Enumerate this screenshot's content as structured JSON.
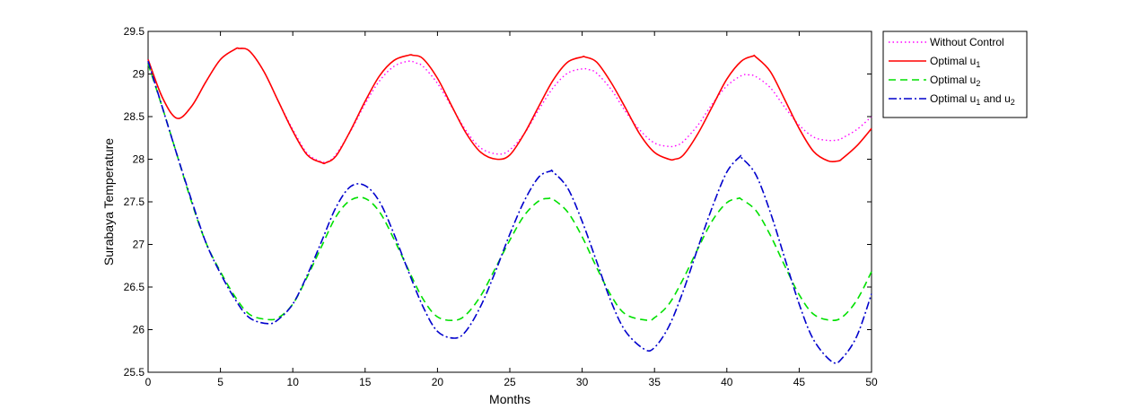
{
  "chart_data": {
    "type": "line",
    "xlabel": "Months",
    "ylabel": "Surabaya Temperature",
    "xlim": [
      0,
      50
    ],
    "ylim": [
      25.5,
      29.5
    ],
    "xticks": [
      "0",
      "5",
      "10",
      "15",
      "20",
      "25",
      "30",
      "35",
      "40",
      "45",
      "50"
    ],
    "yticks": [
      "25.5",
      "26",
      "26.5",
      "27",
      "27.5",
      "28",
      "28.5",
      "29",
      "29.5"
    ],
    "grid": false,
    "legend_position": "outside-top-right",
    "series": [
      {
        "name": "Without Control",
        "legend": {
          "main": "Without Control"
        },
        "color": "#ff00ff",
        "style": "dotted",
        "x": [
          0,
          1,
          2,
          3,
          4,
          5,
          6,
          6.3,
          7,
          8,
          9,
          10,
          11,
          12,
          12.5,
          13,
          14,
          15,
          16,
          17,
          18,
          18.5,
          19,
          20,
          21,
          22,
          23,
          24.2,
          25,
          26,
          27,
          28,
          29,
          30,
          30.5,
          31,
          32,
          33,
          34,
          35,
          36,
          36.5,
          37,
          38,
          39,
          40,
          41,
          41.5,
          42,
          43,
          44,
          45,
          46,
          47,
          47.8,
          48,
          49,
          50
        ],
        "y": [
          29.17,
          28.72,
          28.48,
          28.62,
          28.91,
          29.17,
          29.29,
          29.3,
          29.27,
          29.03,
          28.68,
          28.35,
          28.07,
          27.97,
          27.98,
          28.06,
          28.33,
          28.65,
          28.92,
          29.09,
          29.15,
          29.13,
          29.09,
          28.89,
          28.61,
          28.33,
          28.13,
          28.06,
          28.11,
          28.3,
          28.58,
          28.84,
          29.01,
          29.06,
          29.05,
          29.01,
          28.82,
          28.56,
          28.34,
          28.19,
          28.15,
          28.16,
          28.21,
          28.4,
          28.65,
          28.86,
          28.98,
          28.99,
          28.97,
          28.84,
          28.61,
          28.4,
          28.26,
          28.22,
          28.23,
          28.25,
          28.35,
          28.5
        ]
      },
      {
        "name": "Optimal u1",
        "legend": {
          "main": "Optimal u",
          "sub": "1"
        },
        "color": "#ff0000",
        "style": "solid",
        "x": [
          0,
          1,
          2,
          3,
          4,
          5,
          6,
          6.3,
          7,
          8,
          9,
          10,
          11,
          12,
          12.3,
          13,
          14,
          15,
          16,
          17,
          18,
          18.3,
          19,
          20,
          21,
          22,
          23,
          24.1,
          25,
          26,
          27,
          28,
          29,
          30,
          30.2,
          31,
          32,
          33,
          34,
          35,
          36,
          36.4,
          37,
          38,
          39,
          40,
          41,
          41.8,
          42,
          43,
          44,
          45,
          46,
          47,
          47.7,
          48,
          49,
          50
        ],
        "y": [
          29.17,
          28.72,
          28.48,
          28.62,
          28.91,
          29.17,
          29.29,
          29.3,
          29.27,
          29.03,
          28.68,
          28.33,
          28.05,
          27.96,
          27.96,
          28.04,
          28.34,
          28.68,
          28.98,
          29.16,
          29.22,
          29.22,
          29.18,
          28.95,
          28.62,
          28.3,
          28.08,
          28.0,
          28.05,
          28.3,
          28.62,
          28.93,
          29.14,
          29.2,
          29.2,
          29.14,
          28.9,
          28.6,
          28.29,
          28.08,
          28.0,
          28.0,
          28.05,
          28.3,
          28.62,
          28.94,
          29.15,
          29.21,
          29.2,
          29.03,
          28.7,
          28.36,
          28.09,
          27.98,
          27.98,
          28.01,
          28.16,
          28.36
        ]
      },
      {
        "name": "Optimal u2",
        "legend": {
          "main": "Optimal u",
          "sub": "2"
        },
        "color": "#00e000",
        "style": "dashed",
        "x": [
          0,
          1,
          2,
          3,
          4,
          5,
          6,
          7,
          8.2,
          9,
          10,
          11,
          12,
          13,
          14,
          15,
          16,
          17,
          18,
          19,
          20,
          21.2,
          22,
          23,
          24,
          25,
          26,
          27,
          27.7,
          28,
          29,
          30,
          31,
          32,
          33,
          34.5,
          35,
          36,
          37,
          38,
          39,
          40,
          40.8,
          41,
          42,
          43,
          44,
          45,
          46,
          47.2,
          48,
          49,
          50
        ],
        "y": [
          29.12,
          28.6,
          28.05,
          27.5,
          27.02,
          26.68,
          26.39,
          26.18,
          26.12,
          26.14,
          26.3,
          26.62,
          26.98,
          27.33,
          27.52,
          27.54,
          27.38,
          27.06,
          26.7,
          26.36,
          26.15,
          26.11,
          26.18,
          26.4,
          26.72,
          27.05,
          27.34,
          27.51,
          27.54,
          27.53,
          27.38,
          27.09,
          26.73,
          26.4,
          26.18,
          26.11,
          26.14,
          26.3,
          26.6,
          26.95,
          27.28,
          27.49,
          27.54,
          27.53,
          27.4,
          27.11,
          26.75,
          26.41,
          26.18,
          26.11,
          26.15,
          26.35,
          26.68
        ]
      },
      {
        "name": "Optimal u1 and u2",
        "legend": {
          "main": "Optimal u",
          "sub": "1",
          "mid": " and u",
          "sub2": "2"
        },
        "color": "#0000cc",
        "style": "dashdot",
        "x": [
          0,
          1,
          2,
          3,
          4,
          5,
          6,
          7,
          8.3,
          9,
          10,
          11,
          12,
          13,
          14,
          15,
          16,
          17,
          18,
          19,
          20,
          21.2,
          22,
          23,
          24,
          25,
          26,
          27,
          27.8,
          28,
          29,
          30,
          31,
          32,
          33,
          34.3,
          35,
          36,
          37,
          38,
          39,
          40,
          40.9,
          41,
          42,
          43,
          44,
          45,
          46,
          47.3,
          48,
          49,
          50
        ],
        "y": [
          29.15,
          28.6,
          28.05,
          27.52,
          27.02,
          26.66,
          26.36,
          26.14,
          26.07,
          26.12,
          26.3,
          26.64,
          27.04,
          27.44,
          27.68,
          27.69,
          27.5,
          27.12,
          26.68,
          26.27,
          25.98,
          25.9,
          25.99,
          26.28,
          26.68,
          27.12,
          27.51,
          27.79,
          27.86,
          27.85,
          27.66,
          27.27,
          26.8,
          26.33,
          25.98,
          25.77,
          25.79,
          26.04,
          26.46,
          26.96,
          27.44,
          27.85,
          28.03,
          28.02,
          27.82,
          27.38,
          26.84,
          26.3,
          25.88,
          25.62,
          25.67,
          25.93,
          26.42
        ]
      }
    ]
  }
}
